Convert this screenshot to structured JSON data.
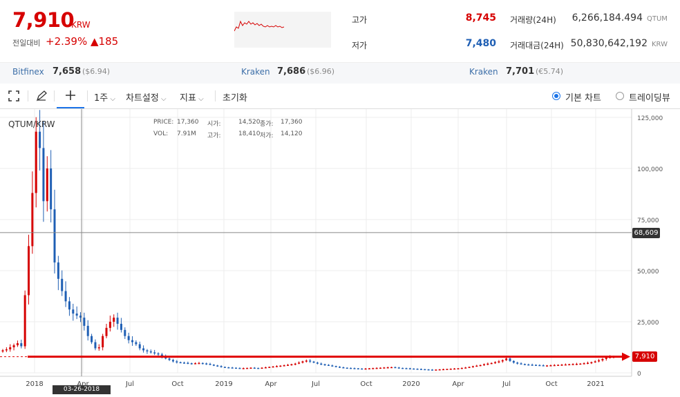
{
  "ticker": {
    "price": "7,910",
    "unit": "KRW",
    "change_label": "전일대비",
    "change_pct": "+2.39%",
    "change_abs": "▲185"
  },
  "stats": {
    "high_label": "고가",
    "high_value": "8,745",
    "low_label": "저가",
    "low_value": "7,480",
    "volume_label": "거래량(24H)",
    "volume_value": "6,266,184.494",
    "volume_unit": "QTUM",
    "amount_label": "거래대금(24H)",
    "amount_value": "50,830,642,192",
    "amount_unit": "KRW"
  },
  "exchanges": [
    {
      "name": "Bitfinex",
      "price": "7,658",
      "sub": "($6.94)"
    },
    {
      "name": "Kraken",
      "price": "7,686",
      "sub": "($6.96)"
    },
    {
      "name": "Kraken",
      "price": "7,701",
      "sub": "(€5.74)"
    }
  ],
  "toolbar": {
    "period": "1주",
    "settings": "차트설정",
    "indicator": "지표",
    "reset": "초기화",
    "basic_chart": "기본 차트",
    "tradingview": "트레이딩뷰"
  },
  "chart_info": {
    "symbol": "QTUM/KRW",
    "price_label": "PRICE:",
    "price_value": "17,360",
    "open_label": "시가:",
    "open_value": "14,520",
    "close_label": "종가:",
    "close_value": "17,360",
    "vol_label": "VOL:",
    "vol_value": "7.91M",
    "high_label": "고가:",
    "high_value": "18,410",
    "low_label": "저가:",
    "low_value": "14,120",
    "crosshair_price": "68,609",
    "last_price_tag": "7,910",
    "crosshair_date": "03-26-2018"
  },
  "colors": {
    "up": "#d60000",
    "down": "#1f5fb4",
    "accent": "#1a73e8"
  },
  "chart_data": {
    "type": "candlestick",
    "y_ticks": [
      "125,000",
      "100,000",
      "75,000",
      "50,000",
      "25,000",
      "0"
    ],
    "x_ticks": [
      "2018",
      "Apr",
      "Jul",
      "Oct",
      "2019",
      "Apr",
      "Jul",
      "Oct",
      "2020",
      "Apr",
      "Jul",
      "Oct",
      "2021"
    ],
    "ylim": [
      0,
      125000
    ],
    "closes_weekly": [
      11000,
      11500,
      12500,
      13500,
      14500,
      13000,
      38000,
      62000,
      88000,
      118000,
      110000,
      84000,
      100000,
      80000,
      54000,
      46000,
      40000,
      35000,
      31000,
      29000,
      28000,
      27000,
      23000,
      18000,
      15000,
      12000,
      12500,
      18000,
      22000,
      25000,
      27000,
      24000,
      21000,
      18000,
      16000,
      15000,
      14000,
      12000,
      11000,
      10500,
      10000,
      9500,
      9000,
      8000,
      7000,
      6300,
      5600,
      5200,
      5000,
      4900,
      4700,
      4600,
      4700,
      4800,
      4600,
      4400,
      4000,
      3600,
      3300,
      2900,
      2700,
      2600,
      2500,
      2400,
      2300,
      2300,
      2400,
      2500,
      2400,
      2300,
      2500,
      2700,
      2900,
      3100,
      3300,
      3500,
      3700,
      3900,
      4200,
      4500,
      5000,
      5600,
      6000,
      5500,
      5000,
      4500,
      4200,
      3900,
      3600,
      3300,
      3000,
      2700,
      2500,
      2400,
      2300,
      2200,
      2100,
      2000,
      2100,
      2200,
      2300,
      2400,
      2500,
      2600,
      2700,
      2800,
      2600,
      2400,
      2300,
      2200,
      2100,
      2000,
      1900,
      1800,
      1700,
      1600,
      1500,
      1600,
      1700,
      1800,
      1900,
      2000,
      2100,
      2200,
      2400,
      2600,
      2900,
      3200,
      3500,
      3800,
      4200,
      4500,
      4800,
      5200,
      5600,
      6200,
      7000,
      5800,
      5000,
      4600,
      4300,
      4100,
      4000,
      3900,
      3800,
      3700,
      3600,
      3600,
      3700,
      3800,
      3900,
      4000,
      4100,
      4200,
      4300,
      4400,
      4500,
      4700,
      4900,
      5200,
      5600,
      6100,
      6800,
      7500,
      7725,
      7910
    ]
  }
}
